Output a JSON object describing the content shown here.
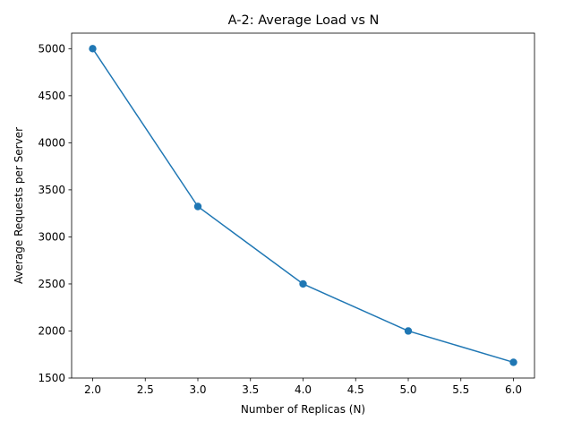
{
  "chart_data": {
    "type": "line",
    "title": "A-2: Average Load vs N",
    "xlabel": "Number of Replicas (N)",
    "ylabel": "Average Requests per Server",
    "xlim": [
      1.8,
      6.2
    ],
    "ylim": [
      1500,
      5165
    ],
    "xticks": [
      2.0,
      2.5,
      3.0,
      3.5,
      4.0,
      4.5,
      5.0,
      5.5,
      6.0
    ],
    "xtick_labels": [
      "2.0",
      "2.5",
      "3.0",
      "3.5",
      "4.0",
      "4.5",
      "5.0",
      "5.5",
      "6.0"
    ],
    "yticks": [
      1500,
      2000,
      2500,
      3000,
      3500,
      4000,
      4500,
      5000
    ],
    "ytick_labels": [
      "1500",
      "2000",
      "2500",
      "3000",
      "3500",
      "4000",
      "4500",
      "5000"
    ],
    "grid": false,
    "legend": "none",
    "color": "#1f77b4",
    "x": [
      2,
      3,
      4,
      5,
      6
    ],
    "y": [
      5000,
      3323,
      2500,
      2000,
      1667
    ]
  }
}
